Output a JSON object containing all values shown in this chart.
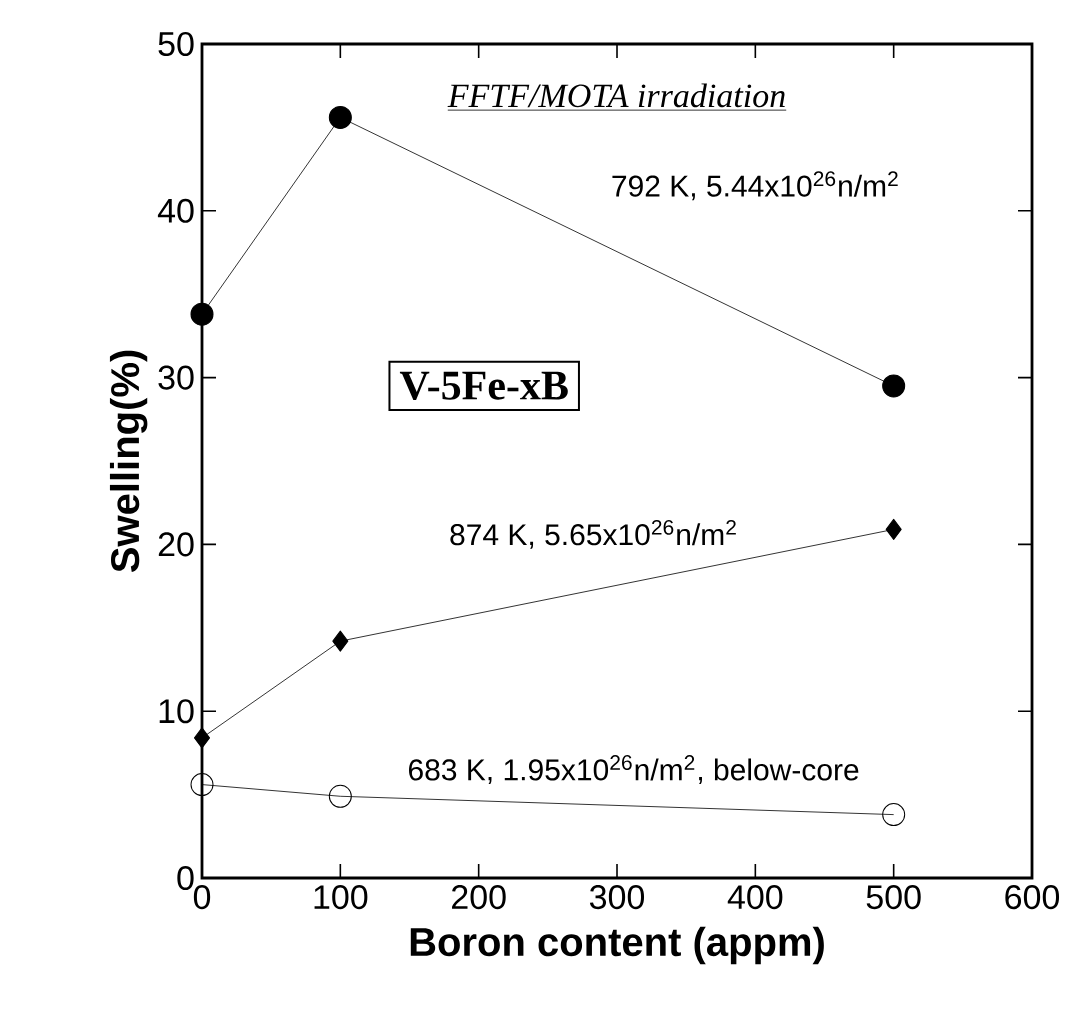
{
  "chart_data": {
    "type": "line",
    "xlabel": "Boron content (appm)",
    "ylabel": "Swelling(%)",
    "x": [
      0,
      100,
      500
    ],
    "series": [
      {
        "name": "792 K, 5.44x10$^{26}$n/m$^{2}$",
        "color": "#000000",
        "marker": "circle",
        "values": [
          33.8,
          45.6,
          29.5
        ]
      },
      {
        "name": "874 K, 5.65x10$^{26}$n/m$^{2}$",
        "color": "#000000",
        "marker": "diamond",
        "values": [
          8.4,
          14.2,
          20.9
        ]
      },
      {
        "name": "683 K, 1.95x10$^{26}$n/m$^{2}$, below-core",
        "color": "#000000",
        "marker": "circle",
        "values": [
          5.6,
          4.9,
          3.8
        ]
      }
    ],
    "annotations": [
      "FFTF/MOTA irradiation",
      "V-5Fe-xB"
    ],
    "xlim": [
      0,
      600
    ],
    "xticks": [
      0,
      100,
      200,
      300,
      400,
      500,
      600
    ],
    "ylim": [
      0,
      50
    ],
    "yticks": [
      0,
      10,
      20,
      30,
      40,
      50
    ],
    "grid": false,
    "legend": false,
    "line_style": "solid"
  }
}
